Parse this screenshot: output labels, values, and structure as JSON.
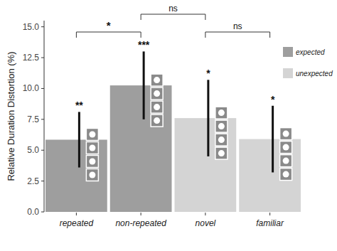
{
  "chart_data": {
    "type": "bar",
    "y_label": "Relative Duration Distortion (%)",
    "categories": [
      "repeated",
      "non-repeated",
      "novel",
      "familiar"
    ],
    "series": [
      {
        "name": "expected",
        "color": "#9e9e9e",
        "values": [
          5.85,
          10.25,
          null,
          null
        ],
        "errors": [
          2.25,
          2.75,
          null,
          null
        ]
      },
      {
        "name": "unexpected",
        "color": "#d4d4d4",
        "values": [
          null,
          null,
          7.6,
          5.9
        ],
        "errors": [
          null,
          null,
          3.1,
          2.7
        ]
      }
    ],
    "significance": [
      "**",
      "***",
      "*",
      "*"
    ],
    "comparisons": [
      {
        "from": "repeated",
        "to": "non-repeated",
        "label": "*"
      },
      {
        "from": "non-repeated",
        "to": "novel",
        "label": "ns"
      },
      {
        "from": "novel",
        "to": "familiar",
        "label": "ns"
      }
    ],
    "ylim": [
      0,
      15.5
    ],
    "yticks": [
      {
        "value": 0,
        "label": "0.0"
      },
      2.5,
      {
        "value": 5,
        "label": "5.0"
      },
      7.5,
      {
        "value": 10,
        "label": "10.0"
      },
      12.5,
      {
        "value": 15,
        "label": "15.0"
      }
    ],
    "legend": "right",
    "grid": false
  }
}
